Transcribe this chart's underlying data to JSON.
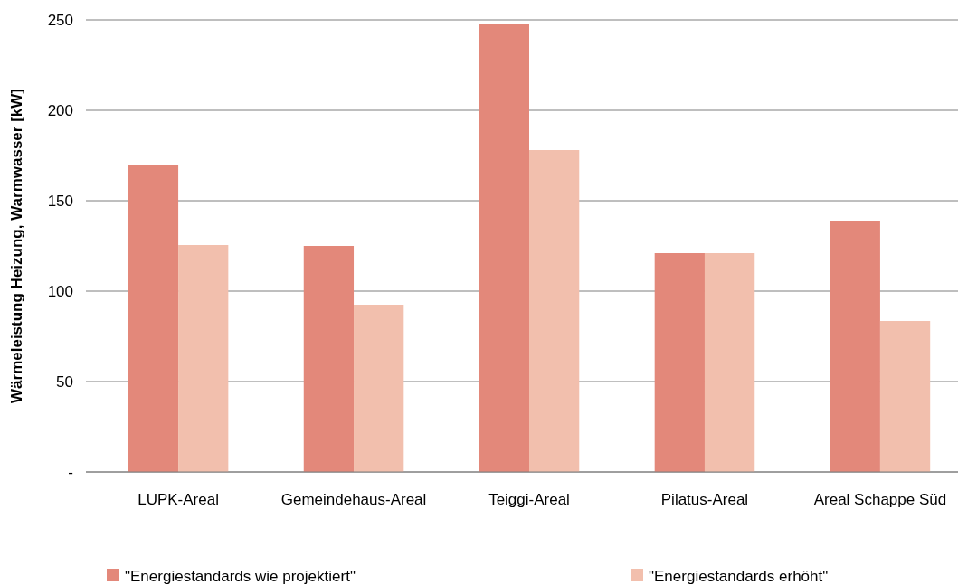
{
  "chart_data": {
    "type": "bar",
    "ylabel": "Wärmeleistung Heizung, Warmwasser [kW]",
    "categories": [
      "LUPK-Areal",
      "Gemeindehaus-Areal",
      "Teiggi-Areal",
      "Pilatus-Areal",
      "Areal Schappe Süd"
    ],
    "series": [
      {
        "name": "\"Energiestandards wie projektiert\"",
        "color": "#e3887a",
        "values": [
          169.5,
          125,
          247.5,
          121,
          139
        ]
      },
      {
        "name": "\"Energiestandards erhöht\"",
        "color": "#f2bfad",
        "values": [
          125.5,
          92.5,
          178,
          121,
          83.5
        ]
      }
    ],
    "ylim": [
      0,
      250
    ],
    "yticks": [
      {
        "value": 0,
        "label": "-"
      },
      50,
      100,
      150,
      200,
      250
    ],
    "grid": "y",
    "legend": "bottom"
  }
}
